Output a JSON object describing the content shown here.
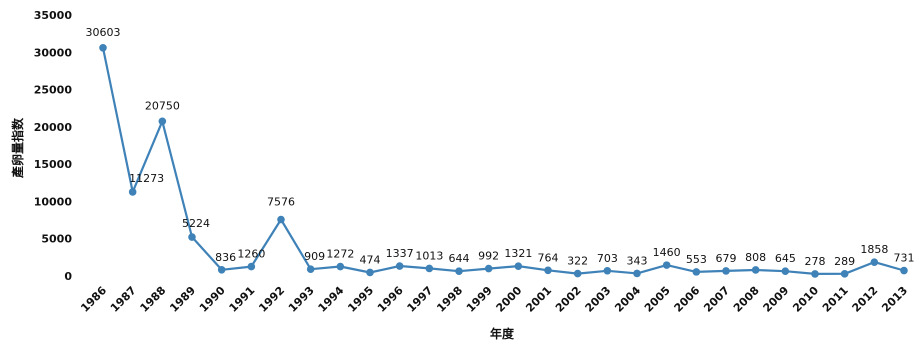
{
  "chart_data": {
    "type": "line",
    "title": "",
    "xlabel": "年度",
    "ylabel": "產卵量指数",
    "ylim": [
      0,
      35000
    ],
    "yticks": [
      0,
      5000,
      10000,
      15000,
      20000,
      25000,
      30000,
      35000
    ],
    "grid": false,
    "legend": "none",
    "x": [
      "1986",
      "1987",
      "1988",
      "1989",
      "1990",
      "1991",
      "1992",
      "1993",
      "1994",
      "1995",
      "1996",
      "1997",
      "1998",
      "1999",
      "2000",
      "2001",
      "2002",
      "2003",
      "2004",
      "2005",
      "2006",
      "2007",
      "2008",
      "2009",
      "2010",
      "2011",
      "2012",
      "2013"
    ],
    "series": [
      {
        "color": "#3f82b8",
        "values": [
          30603,
          11273,
          20750,
          5224,
          836,
          1260,
          7576,
          909,
          1272,
          474,
          1337,
          1013,
          644,
          992,
          1321,
          764,
          322,
          703,
          343,
          1460,
          553,
          679,
          808,
          645,
          278,
          289,
          1858,
          731
        ]
      }
    ]
  }
}
